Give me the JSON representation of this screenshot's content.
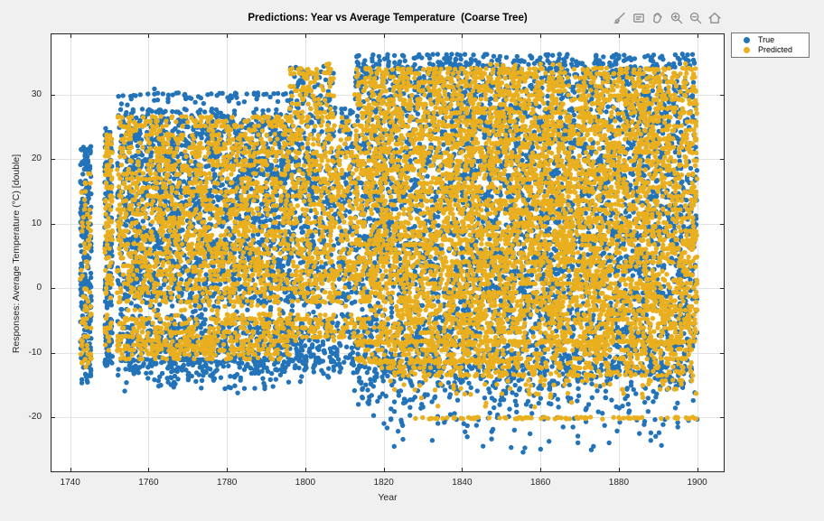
{
  "figure": {
    "background_color": "#f0f0f0",
    "plot_background_color": "#ffffff",
    "axis_color": "#262626"
  },
  "toolbar": {
    "buttons": [
      {
        "name": "brush",
        "icon": "brush-icon"
      },
      {
        "name": "datatips",
        "icon": "datatip-icon"
      },
      {
        "name": "pan",
        "icon": "hand-icon"
      },
      {
        "name": "zoom-in",
        "icon": "zoom-in-icon"
      },
      {
        "name": "zoom-out",
        "icon": "zoom-out-icon"
      },
      {
        "name": "restore-view",
        "icon": "home-icon"
      }
    ]
  },
  "chart_data": {
    "type": "scatter",
    "title": "Predictions: Year vs Average Temperature  (Coarse Tree)",
    "xlabel": "Year",
    "ylabel": "Responses: Average Temperature (°C) [double]",
    "xlim": [
      1735,
      1907
    ],
    "ylim": [
      -28.5,
      39.5
    ],
    "x_ticks": [
      1740,
      1760,
      1780,
      1800,
      1820,
      1840,
      1860,
      1880,
      1900
    ],
    "y_ticks": [
      -20,
      -10,
      0,
      10,
      20,
      30
    ],
    "grid": true,
    "grid_color": "rgba(38,38,38,0.13)",
    "point_radius": 2.7,
    "seed": 1234,
    "legend": {
      "position": "outside-top-right",
      "entries": [
        {
          "label": "True",
          "color": "#2373b9"
        },
        {
          "label": "Predicted",
          "color": "#e9af1e"
        }
      ]
    },
    "gap_bands": [
      {
        "x": [
          1748,
          1823
        ],
        "y": [
          -4.3,
          -2.3
        ],
        "keep": 0.3
      }
    ],
    "series": [
      {
        "name": "True",
        "color": "#2373b9",
        "marker": "filled-circle",
        "blobs": [
          {
            "x": [
              1742.6,
              1745.4
            ],
            "y": [
              -13.5,
              22
            ],
            "n": 235,
            "dist": "uniform"
          },
          {
            "x": [
              1742.6,
              1745.4
            ],
            "y": [
              -16,
              -13.5
            ],
            "n": 8,
            "dist": "thin_down"
          },
          {
            "x": [
              1748.8,
              1750.8
            ],
            "y": [
              -12,
              25
            ],
            "n": 165,
            "dist": "uniform"
          },
          {
            "x": [
              1752,
              1796
            ],
            "y": [
              -11,
              27.8
            ],
            "n": 2350,
            "dist": "uniform"
          },
          {
            "x": [
              1752,
              1796
            ],
            "y": [
              27.8,
              30.3
            ],
            "n": 60,
            "dist": "thin_down"
          },
          {
            "x": [
              1752,
              1796
            ],
            "y": [
              -16.5,
              -11
            ],
            "n": 230,
            "dist": "thin_down"
          },
          {
            "x": [
              1796,
              1807.5
            ],
            "y": [
              -11,
              34.6
            ],
            "n": 520,
            "dist": "uniform"
          },
          {
            "x": [
              1796,
              1807.5
            ],
            "y": [
              -15,
              -11
            ],
            "n": 45,
            "dist": "thin_down"
          },
          {
            "x": [
              1807.5,
              1812.5
            ],
            "y": [
              -11,
              28
            ],
            "n": 170,
            "dist": "uniform"
          },
          {
            "x": [
              1807.5,
              1812.5
            ],
            "y": [
              -14,
              -11
            ],
            "n": 12,
            "dist": "thin_down"
          },
          {
            "x": [
              1812.5,
              1900
            ],
            "y": [
              -12,
              36.3
            ],
            "n": 4300,
            "dist": "uniform"
          },
          {
            "x": [
              1812.5,
              1900
            ],
            "y": [
              -22,
              -12
            ],
            "n": 480,
            "dist": "thin_down"
          },
          {
            "x": [
              1820,
              1900
            ],
            "y": [
              -26,
              -20
            ],
            "n": 55,
            "dist": "thin_down"
          },
          {
            "x": [
              1855,
              1876
            ],
            "y": [
              -26.2,
              -24
            ],
            "n": 4,
            "dist": "uniform"
          }
        ],
        "extra_points": [
          [
            1761.5,
            30.9
          ],
          [
            1761.5,
            30.1
          ],
          [
            1756.2,
            29.9
          ]
        ]
      },
      {
        "name": "Predicted",
        "color": "#e9af1e",
        "marker": "filled-circle",
        "quantize": {
          "step": 0.68,
          "jitter": 0.13
        },
        "blobs": [
          {
            "x": [
              1742.6,
              1745.4
            ],
            "y": [
              -12.5,
              18
            ],
            "n": 80,
            "dist": "uniform"
          },
          {
            "x": [
              1748.8,
              1750.8
            ],
            "y": [
              -10,
              24
            ],
            "n": 110,
            "dist": "uniform"
          },
          {
            "x": [
              1752,
              1796
            ],
            "y": [
              -6.5,
              26.8
            ],
            "n": 1750,
            "dist": "uniform"
          },
          {
            "x": [
              1752,
              1796
            ],
            "y": [
              -11,
              -6.5
            ],
            "n": 330,
            "dist": "uniform"
          },
          {
            "x": [
              1796,
              1807.5
            ],
            "y": [
              -8,
              34.4
            ],
            "n": 560,
            "dist": "uniform"
          },
          {
            "x": [
              1807.5,
              1812.5
            ],
            "y": [
              -8,
              26.5
            ],
            "n": 150,
            "dist": "uniform"
          },
          {
            "x": [
              1812.5,
              1900
            ],
            "y": [
              -6.8,
              34.4
            ],
            "n": 5300,
            "dist": "uniform"
          },
          {
            "x": [
              1812.5,
              1900
            ],
            "y": [
              -12,
              -6.8
            ],
            "n": 520,
            "dist": "uniform"
          },
          {
            "x": [
              1820,
              1900
            ],
            "y": [
              -19,
              -12
            ],
            "n": 200,
            "dist": "thin_down"
          }
        ],
        "rows": [
          {
            "y": -20.1,
            "x": [
              1823,
              1900
            ],
            "n": 80
          },
          {
            "y": -8.3,
            "x": [
              1813,
              1900
            ],
            "n": 140
          },
          {
            "y": -11.3,
            "x": [
              1812,
              1852
            ],
            "n": 70
          },
          {
            "y": -13.4,
            "x": [
              1824,
              1896
            ],
            "n": 45
          }
        ]
      }
    ]
  }
}
